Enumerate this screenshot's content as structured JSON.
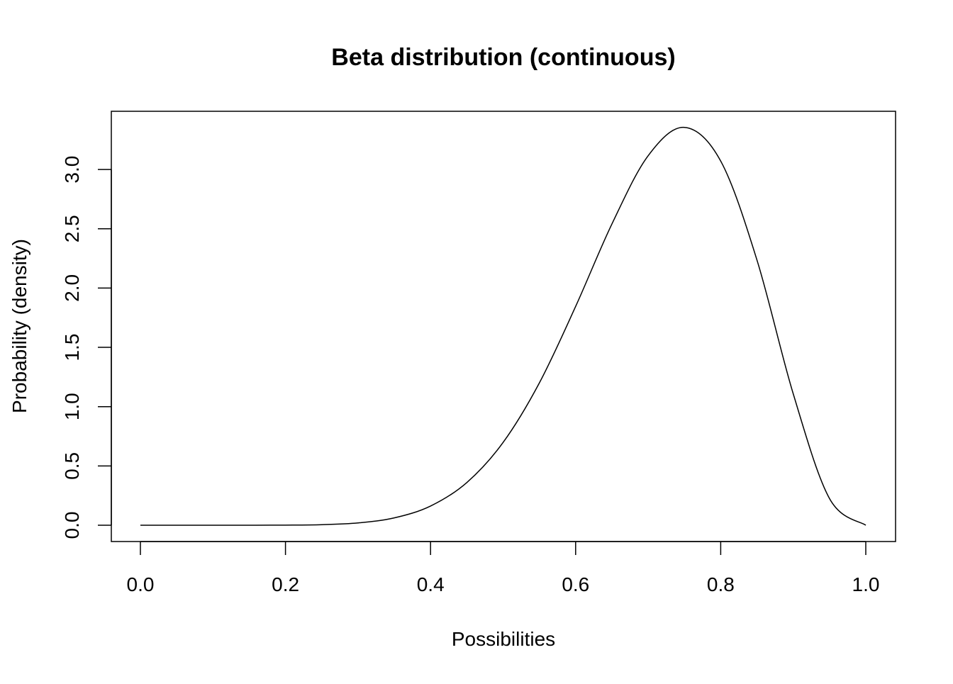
{
  "chart_data": {
    "type": "line",
    "title": "Beta distribution (continuous)",
    "xlabel": "Possibilities",
    "ylabel": "Probability (density)",
    "xlim": [
      0,
      1
    ],
    "ylim": [
      0,
      3.36
    ],
    "grid": false,
    "xticks": [
      "0.0",
      "0.2",
      "0.4",
      "0.6",
      "0.8",
      "1.0"
    ],
    "yticks": [
      "0.0",
      "0.5",
      "1.0",
      "1.5",
      "2.0",
      "2.5",
      "3.0"
    ],
    "line_color": "#000000",
    "series": [
      {
        "x": [
          0,
          0.05,
          0.1,
          0.15,
          0.2,
          0.25,
          0.3,
          0.35,
          0.4,
          0.45,
          0.5,
          0.55,
          0.6,
          0.65,
          0.7,
          0.75,
          0.8,
          0.85,
          0.9,
          0.95,
          1.0
        ],
        "y": [
          0,
          0,
          2e-06,
          7e-05,
          0.00075,
          0.0046,
          0.0193,
          0.0619,
          0.162,
          0.36,
          0.698,
          1.2,
          1.845,
          2.54,
          3.116,
          3.355,
          3.071,
          2.236,
          1.108,
          0.225,
          0
        ]
      }
    ]
  }
}
